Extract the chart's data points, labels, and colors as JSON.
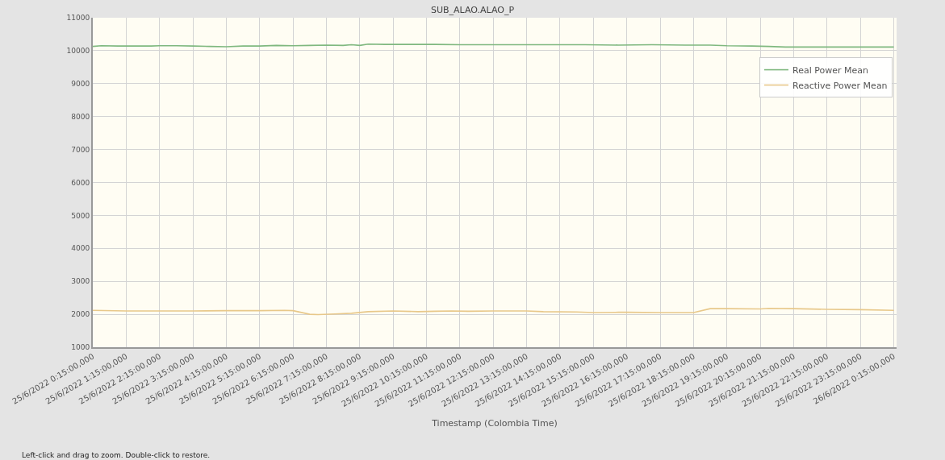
{
  "chart_data": {
    "type": "line",
    "title": "SUB_ALAO.ALAO_P",
    "xlabel": "Timestamp (Colombia Time)",
    "annotations": [
      "Left-click and drag to zoom. Double-click to restore."
    ],
    "xlim": [
      "2022-06-25T00:15",
      "2022-06-26T00:20"
    ],
    "xticks": [
      {
        "value": "2022-06-25T00:15",
        "label": "25/6/2022 0:15:00,000"
      },
      {
        "value": "2022-06-25T01:15",
        "label": "25/6/2022 1:15:00,000"
      },
      {
        "value": "2022-06-25T02:15",
        "label": "25/6/2022 2:15:00,000"
      },
      {
        "value": "2022-06-25T03:15",
        "label": "25/6/2022 3:15:00,000"
      },
      {
        "value": "2022-06-25T04:15",
        "label": "25/6/2022 4:15:00,000"
      },
      {
        "value": "2022-06-25T05:15",
        "label": "25/6/2022 5:15:00,000"
      },
      {
        "value": "2022-06-25T06:15",
        "label": "25/6/2022 6:15:00,000"
      },
      {
        "value": "2022-06-25T07:15",
        "label": "25/6/2022 7:15:00,000"
      },
      {
        "value": "2022-06-25T08:15",
        "label": "25/6/2022 8:15:00,000"
      },
      {
        "value": "2022-06-25T09:15",
        "label": "25/6/2022 9:15:00,000"
      },
      {
        "value": "2022-06-25T10:15",
        "label": "25/6/2022 10:15:00,000"
      },
      {
        "value": "2022-06-25T11:15",
        "label": "25/6/2022 11:15:00,000"
      },
      {
        "value": "2022-06-25T12:15",
        "label": "25/6/2022 12:15:00,000"
      },
      {
        "value": "2022-06-25T13:15",
        "label": "25/6/2022 13:15:00,000"
      },
      {
        "value": "2022-06-25T14:15",
        "label": "25/6/2022 14:15:00,000"
      },
      {
        "value": "2022-06-25T15:15",
        "label": "25/6/2022 15:15:00,000"
      },
      {
        "value": "2022-06-25T16:15",
        "label": "25/6/2022 16:15:00,000"
      },
      {
        "value": "2022-06-25T17:15",
        "label": "25/6/2022 17:15:00,000"
      },
      {
        "value": "2022-06-25T18:15",
        "label": "25/6/2022 18:15:00,000"
      },
      {
        "value": "2022-06-25T19:15",
        "label": "25/6/2022 19:15:00,000"
      },
      {
        "value": "2022-06-25T20:15",
        "label": "25/6/2022 20:15:00,000"
      },
      {
        "value": "2022-06-25T21:15",
        "label": "25/6/2022 21:15:00,000"
      },
      {
        "value": "2022-06-25T22:15",
        "label": "25/6/2022 22:15:00,000"
      },
      {
        "value": "2022-06-25T23:15",
        "label": "25/6/2022 23:15:00,000"
      },
      {
        "value": "2022-06-26T00:15",
        "label": "26/6/2022 0:15:00,000"
      }
    ],
    "ylim": [
      1000,
      11000
    ],
    "yticks": [
      1000,
      2000,
      3000,
      4000,
      5000,
      6000,
      7000,
      8000,
      9000,
      10000,
      11000
    ],
    "grid": true,
    "legend": "top right",
    "marker": "none",
    "line_style": "solid",
    "series": [
      {
        "name": "Real Power Mean",
        "color": "#7fb87f",
        "x": [
          "2022-06-25T00:15",
          "2022-06-25T00:30",
          "2022-06-25T01:00",
          "2022-06-25T01:30",
          "2022-06-25T02:00",
          "2022-06-25T02:15",
          "2022-06-25T02:45",
          "2022-06-25T03:15",
          "2022-06-25T03:45",
          "2022-06-25T04:15",
          "2022-06-25T04:45",
          "2022-06-25T05:15",
          "2022-06-25T05:45",
          "2022-06-25T06:15",
          "2022-06-25T06:45",
          "2022-06-25T07:15",
          "2022-06-25T07:45",
          "2022-06-25T08:00",
          "2022-06-25T08:15",
          "2022-06-25T08:30",
          "2022-06-25T09:00",
          "2022-06-25T09:30",
          "2022-06-25T10:00",
          "2022-06-25T10:30",
          "2022-06-25T11:15",
          "2022-06-25T12:00",
          "2022-06-25T13:00",
          "2022-06-25T14:00",
          "2022-06-25T15:00",
          "2022-06-25T16:00",
          "2022-06-25T17:00",
          "2022-06-25T18:00",
          "2022-06-25T18:45",
          "2022-06-25T19:15",
          "2022-06-25T20:00",
          "2022-06-25T20:30",
          "2022-06-25T21:00",
          "2022-06-25T21:30",
          "2022-06-25T22:00",
          "2022-06-25T23:00",
          "2022-06-26T00:15"
        ],
        "values": [
          10130,
          10150,
          10140,
          10140,
          10140,
          10150,
          10150,
          10140,
          10130,
          10120,
          10140,
          10140,
          10160,
          10150,
          10160,
          10170,
          10160,
          10180,
          10160,
          10200,
          10190,
          10190,
          10190,
          10190,
          10180,
          10180,
          10180,
          10180,
          10180,
          10170,
          10180,
          10170,
          10170,
          10150,
          10140,
          10130,
          10110,
          10110,
          10110,
          10110,
          10110
        ]
      },
      {
        "name": "Reactive Power Mean",
        "color": "#e8c88a",
        "x": [
          "2022-06-25T00:15",
          "2022-06-25T01:15",
          "2022-06-25T02:15",
          "2022-06-25T03:15",
          "2022-06-25T04:15",
          "2022-06-25T05:15",
          "2022-06-25T06:00",
          "2022-06-25T06:15",
          "2022-06-25T06:45",
          "2022-06-25T07:00",
          "2022-06-25T07:30",
          "2022-06-25T08:00",
          "2022-06-25T08:30",
          "2022-06-25T09:15",
          "2022-06-25T10:00",
          "2022-06-25T10:30",
          "2022-06-25T11:00",
          "2022-06-25T11:30",
          "2022-06-25T12:15",
          "2022-06-25T13:15",
          "2022-06-25T13:45",
          "2022-06-25T14:45",
          "2022-06-25T15:15",
          "2022-06-25T16:00",
          "2022-06-25T16:15",
          "2022-06-25T17:15",
          "2022-06-25T18:15",
          "2022-06-25T18:45",
          "2022-06-25T19:15",
          "2022-06-25T20:15",
          "2022-06-25T20:30",
          "2022-06-25T21:15",
          "2022-06-25T22:15",
          "2022-06-25T23:15",
          "2022-06-26T00:15"
        ],
        "values": [
          2120,
          2100,
          2100,
          2100,
          2110,
          2110,
          2120,
          2110,
          2000,
          1990,
          2010,
          2030,
          2080,
          2100,
          2080,
          2090,
          2100,
          2090,
          2100,
          2100,
          2080,
          2070,
          2050,
          2060,
          2060,
          2050,
          2050,
          2170,
          2170,
          2160,
          2180,
          2170,
          2150,
          2140,
          2120
        ]
      }
    ]
  }
}
